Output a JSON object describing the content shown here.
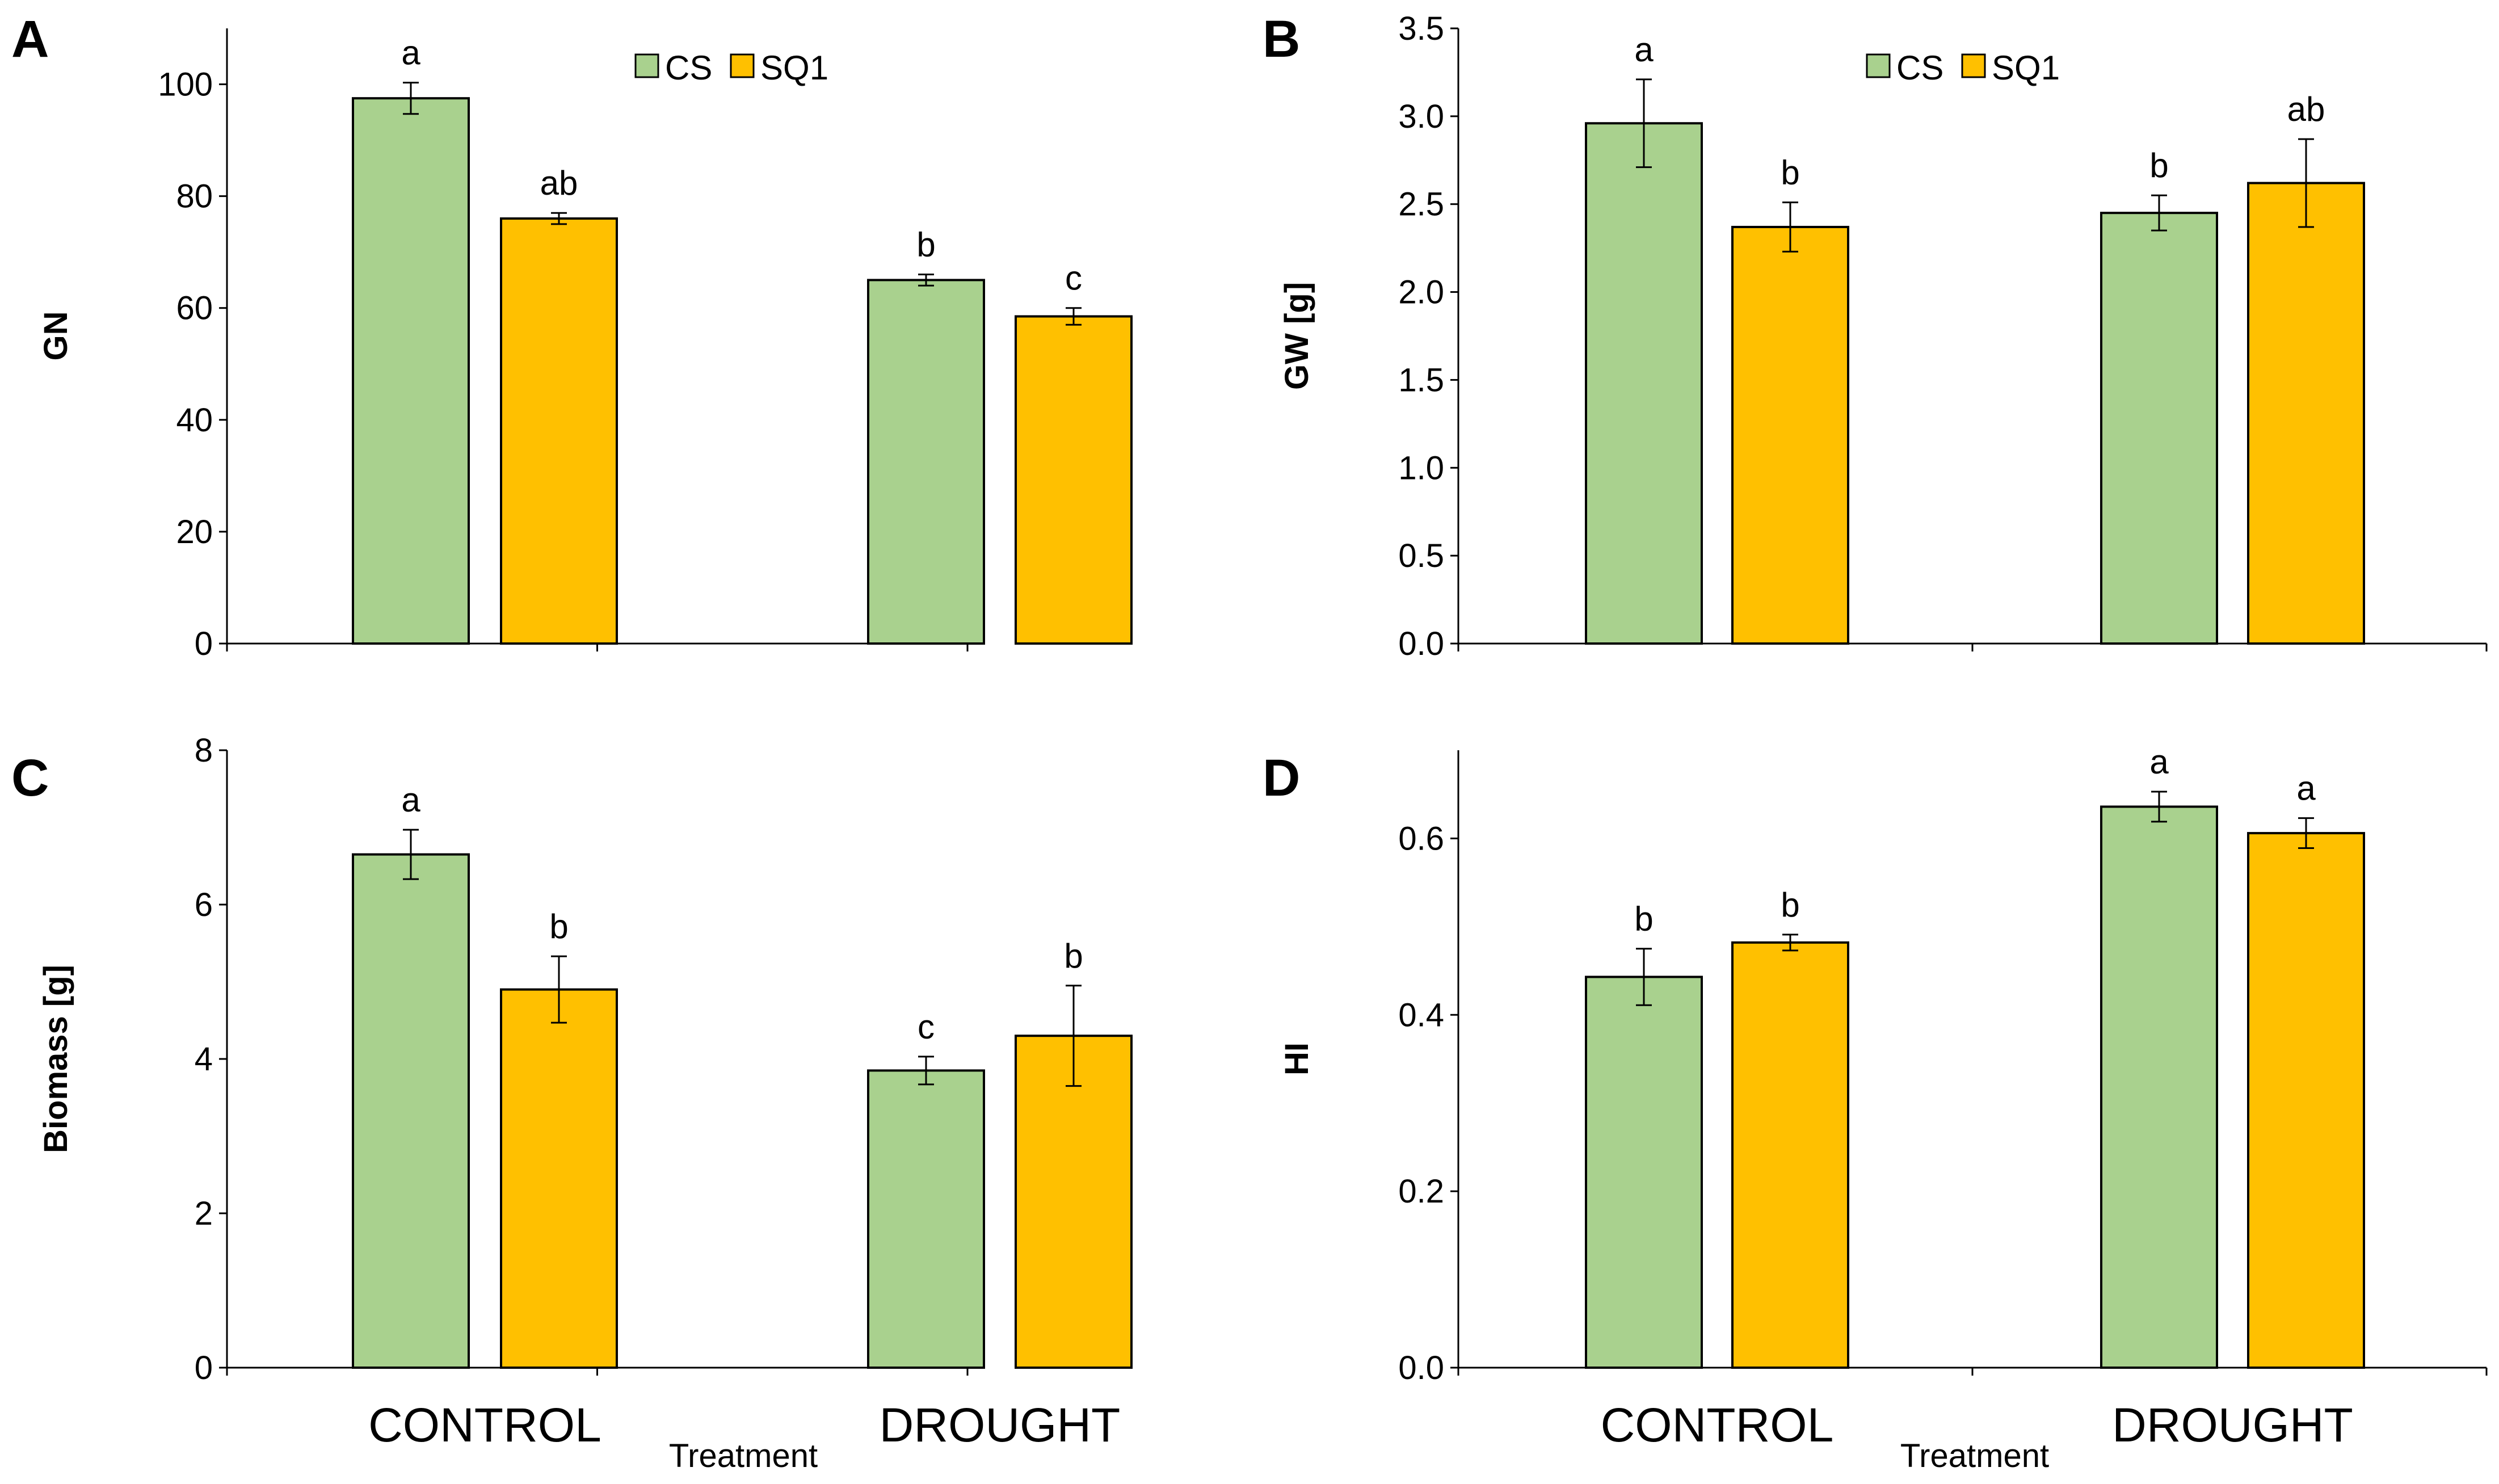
{
  "colors": {
    "CS": "#a9d18e",
    "SQ1": "#ffc000",
    "axis": "#000000"
  },
  "treatment_label": "Treatment",
  "chart_data": [
    {
      "type": "bar",
      "panel": "A",
      "ylabel": "GN",
      "ylim": [
        0,
        110
      ],
      "yticks": [
        0,
        20,
        40,
        60,
        80,
        100
      ],
      "tick_labels": [
        "0",
        "20",
        "40",
        "60",
        "80",
        "100"
      ],
      "categories": [
        "CONTROL",
        "DROUGHT"
      ],
      "legend": {
        "show": true,
        "placement": "top-center"
      },
      "series": [
        {
          "name": "CS",
          "values": [
            97.5,
            65
          ],
          "errors": [
            2.8,
            1
          ],
          "labels": [
            "a",
            "b"
          ]
        },
        {
          "name": "SQ1",
          "values": [
            76,
            58.5
          ],
          "errors": [
            1,
            1.5
          ],
          "labels": [
            "ab",
            "c"
          ]
        }
      ]
    },
    {
      "type": "bar",
      "panel": "B",
      "ylabel": "GW  [g]",
      "ylim": [
        0,
        3.5
      ],
      "yticks": [
        0,
        0.5,
        1,
        1.5,
        2,
        2.5,
        3,
        3.5
      ],
      "tick_labels": [
        "0.0",
        "0.5",
        "1.0",
        "1.5",
        "2.0",
        "2.5",
        "3.0",
        "3.5"
      ],
      "categories": [
        "CONTROL",
        "DROUGHT"
      ],
      "legend": {
        "show": true,
        "placement": "top-center"
      },
      "series": [
        {
          "name": "CS",
          "values": [
            2.96,
            2.45
          ],
          "errors": [
            0.25,
            0.1
          ],
          "labels": [
            "a",
            "b"
          ]
        },
        {
          "name": "SQ1",
          "values": [
            2.37,
            2.62
          ],
          "errors": [
            0.14,
            0.25
          ],
          "labels": [
            "b",
            "ab"
          ]
        }
      ]
    },
    {
      "type": "bar",
      "panel": "C",
      "ylabel": "Biomass  [g]",
      "ylim": [
        0,
        8
      ],
      "yticks": [
        0,
        2,
        4,
        6,
        8
      ],
      "tick_labels": [
        "0",
        "2",
        "4",
        "6",
        "8"
      ],
      "categories": [
        "CONTROL",
        "DROUGHT"
      ],
      "legend": {
        "show": false
      },
      "series": [
        {
          "name": "CS",
          "values": [
            6.65,
            3.85
          ],
          "errors": [
            0.32,
            0.18
          ],
          "labels": [
            "a",
            "c"
          ]
        },
        {
          "name": "SQ1",
          "values": [
            4.9,
            4.3
          ],
          "errors": [
            0.43,
            0.65
          ],
          "labels": [
            "b",
            "b"
          ]
        }
      ]
    },
    {
      "type": "bar",
      "panel": "D",
      "ylabel": "HI",
      "ylim": [
        0,
        0.7
      ],
      "yticks": [
        0,
        0.2,
        0.4,
        0.6
      ],
      "tick_labels": [
        "0.0",
        "0.2",
        "0.4",
        "0.6"
      ],
      "categories": [
        "CONTROL",
        "DROUGHT"
      ],
      "legend": {
        "show": false
      },
      "series": [
        {
          "name": "CS",
          "values": [
            0.443,
            0.636
          ],
          "errors": [
            0.032,
            0.017
          ],
          "labels": [
            "b",
            "a"
          ]
        },
        {
          "name": "SQ1",
          "values": [
            0.482,
            0.606
          ],
          "errors": [
            0.009,
            0.017
          ],
          "labels": [
            "b",
            "a"
          ]
        }
      ]
    }
  ]
}
